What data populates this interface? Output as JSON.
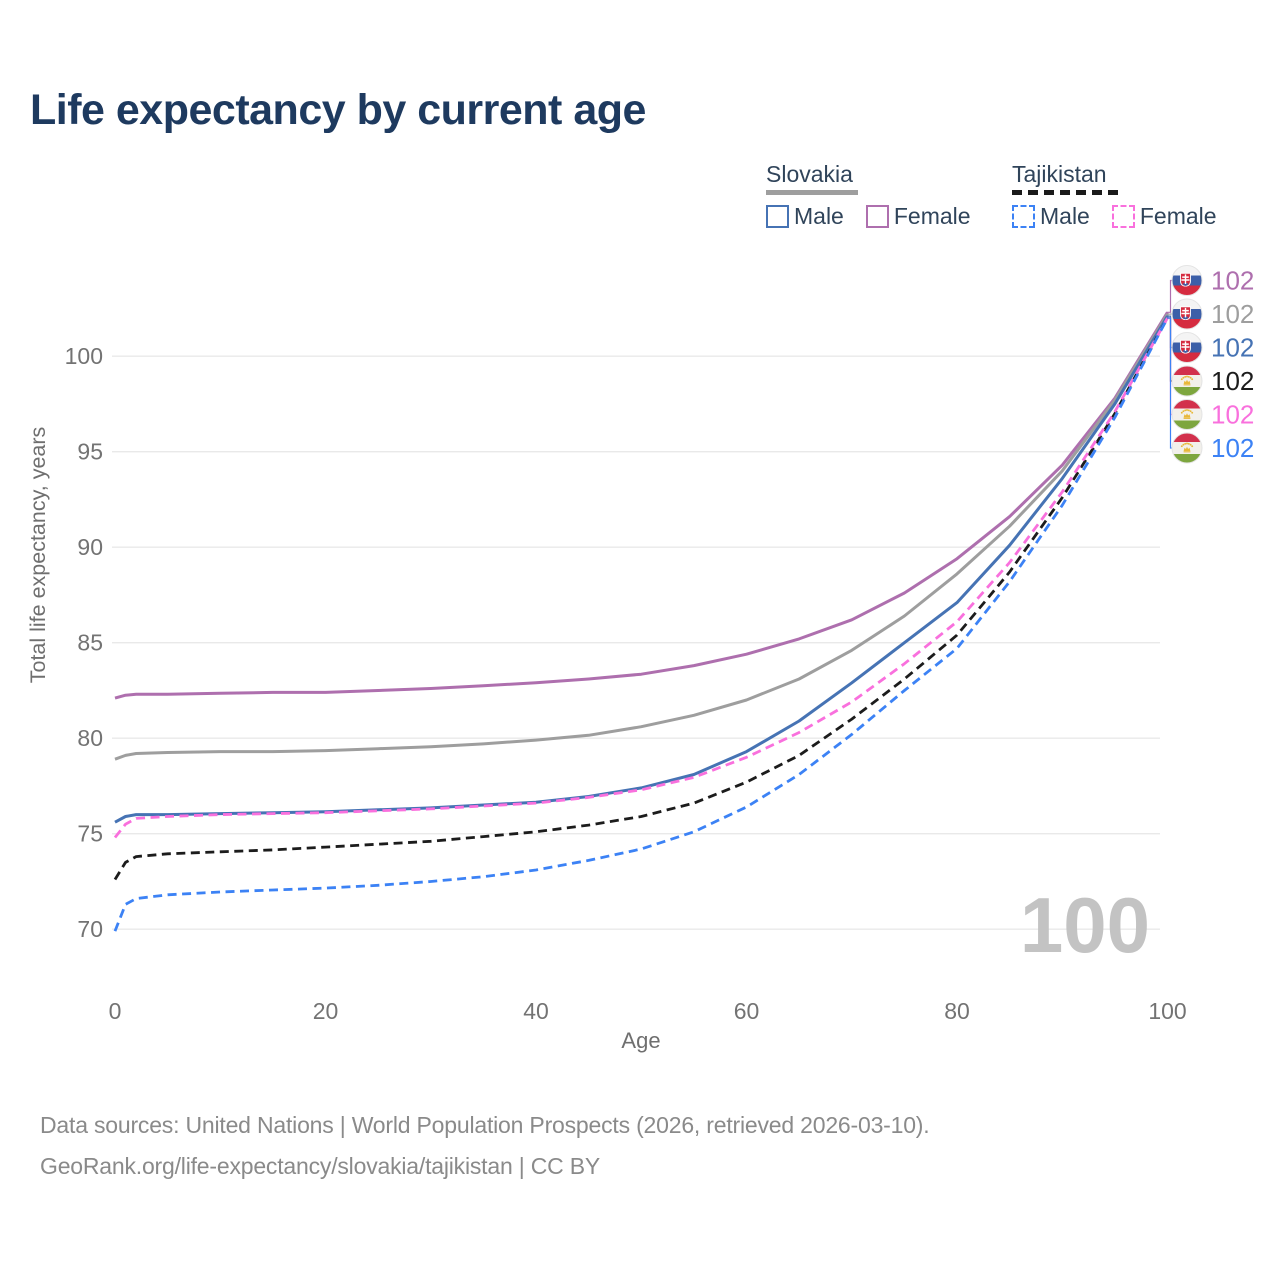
{
  "title": "Life expectancy by current age",
  "legend": {
    "groups": [
      {
        "country": "Slovakia",
        "line": "solid",
        "line_color": "#9e9e9e",
        "items": [
          {
            "label": "Male",
            "color": "#4673b4",
            "line": "solid"
          },
          {
            "label": "Female",
            "color": "#ae6fae",
            "line": "solid"
          }
        ]
      },
      {
        "country": "Tajikistan",
        "line": "dashed",
        "line_color": "#1a1a1a",
        "items": [
          {
            "label": "Male",
            "color": "#3c82f5",
            "line": "dashed"
          },
          {
            "label": "Female",
            "color": "#f970dd",
            "line": "dashed"
          }
        ]
      }
    ]
  },
  "chart_data": {
    "type": "line",
    "title": "Life expectancy by current age",
    "xlabel": "Age",
    "ylabel": "Total life expectancy, years",
    "xlim": [
      0,
      100
    ],
    "ylim": [
      69,
      103
    ],
    "x_ticks": [
      0,
      20,
      40,
      60,
      80,
      100
    ],
    "y_ticks": [
      70,
      75,
      80,
      85,
      90,
      95,
      100
    ],
    "grid": "horizontal",
    "legend_position": "top-right",
    "watermark": "100",
    "ages": [
      0,
      1,
      2,
      5,
      10,
      15,
      20,
      25,
      30,
      35,
      40,
      45,
      50,
      55,
      60,
      65,
      70,
      75,
      80,
      85,
      90,
      95,
      100
    ],
    "series": [
      {
        "name": "Slovakia Female",
        "country": "Slovakia",
        "sex": "Female",
        "line": "solid",
        "color": "#ae6fae",
        "end_label": "102",
        "values": [
          82.1,
          82.25,
          82.3,
          82.3,
          82.35,
          82.4,
          82.4,
          82.5,
          82.6,
          82.75,
          82.9,
          83.1,
          83.35,
          83.8,
          84.4,
          85.2,
          86.2,
          87.6,
          89.4,
          91.6,
          94.3,
          97.8,
          102.3
        ]
      },
      {
        "name": "Slovakia Both sexes",
        "country": "Slovakia",
        "sex": "All",
        "line": "solid",
        "color": "#9e9e9e",
        "end_label": "102",
        "values": [
          78.9,
          79.1,
          79.2,
          79.25,
          79.3,
          79.3,
          79.35,
          79.45,
          79.55,
          79.7,
          79.9,
          80.15,
          80.6,
          81.2,
          82.0,
          83.1,
          84.6,
          86.4,
          88.6,
          91.1,
          94.0,
          97.7,
          102.2
        ]
      },
      {
        "name": "Slovakia Male",
        "country": "Slovakia",
        "sex": "Male",
        "line": "solid",
        "color": "#4673b4",
        "end_label": "102",
        "values": [
          75.6,
          75.9,
          76.0,
          76.0,
          76.05,
          76.1,
          76.15,
          76.25,
          76.35,
          76.5,
          76.65,
          76.95,
          77.4,
          78.1,
          79.3,
          80.9,
          82.9,
          85.0,
          87.1,
          90.1,
          93.6,
          97.5,
          102.1
        ]
      },
      {
        "name": "Tajikistan Both sexes",
        "country": "Tajikistan",
        "sex": "All",
        "line": "dashed",
        "color": "#1c1c1c",
        "end_label": "102",
        "values": [
          72.6,
          73.5,
          73.8,
          73.95,
          74.05,
          74.15,
          74.3,
          74.45,
          74.6,
          74.85,
          75.1,
          75.45,
          75.9,
          76.6,
          77.7,
          79.1,
          81.0,
          83.1,
          85.4,
          88.7,
          92.6,
          97.0,
          102.0
        ]
      },
      {
        "name": "Tajikistan Female",
        "country": "Tajikistan",
        "sex": "Female",
        "line": "dashed",
        "color": "#f970dd",
        "end_label": "102",
        "values": [
          74.8,
          75.5,
          75.8,
          75.9,
          76.0,
          76.05,
          76.1,
          76.2,
          76.3,
          76.45,
          76.6,
          76.9,
          77.3,
          77.95,
          79.0,
          80.3,
          81.9,
          83.9,
          86.1,
          89.2,
          92.9,
          97.1,
          102.0
        ]
      },
      {
        "name": "Tajikistan Male",
        "country": "Tajikistan",
        "sex": "Male",
        "line": "dashed",
        "color": "#3c82f5",
        "end_label": "102",
        "values": [
          69.9,
          71.3,
          71.6,
          71.8,
          71.95,
          72.05,
          72.15,
          72.3,
          72.5,
          72.75,
          73.1,
          73.6,
          74.2,
          75.1,
          76.4,
          78.1,
          80.2,
          82.5,
          84.7,
          88.2,
          92.2,
          96.8,
          102.0
        ]
      }
    ]
  },
  "footer": {
    "line1": "Data sources: United Nations | World Population Prospects (2026, retrieved 2026-03-10).",
    "line2": "GeoRank.org/life-expectancy/slovakia/tajikistan | CC BY"
  }
}
